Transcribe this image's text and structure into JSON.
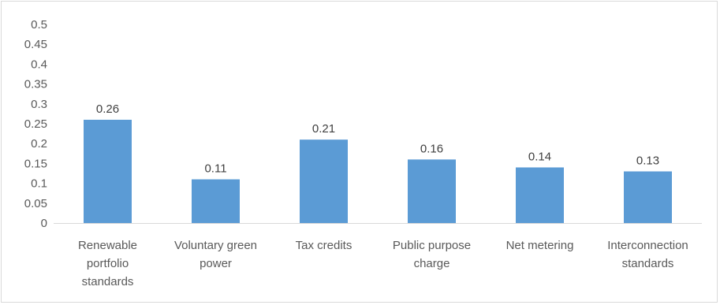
{
  "chart_data": {
    "type": "bar",
    "title": "",
    "xlabel": "",
    "ylabel": "",
    "categories": [
      "Renewable portfolio standards",
      "Voluntary green power",
      "Tax credits",
      "Public purpose charge",
      "Net metering",
      "Interconnection standards"
    ],
    "category_lines": [
      [
        "Renewable",
        "portfolio",
        "standards"
      ],
      [
        "Voluntary green",
        "power"
      ],
      [
        "Tax credits"
      ],
      [
        "Public purpose",
        "charge"
      ],
      [
        "Net metering"
      ],
      [
        "Interconnection",
        "standards"
      ]
    ],
    "values": [
      0.26,
      0.11,
      0.21,
      0.16,
      0.14,
      0.13
    ],
    "data_labels": [
      "0.26",
      "0.11",
      "0.21",
      "0.16",
      "0.14",
      "0.13"
    ],
    "ylim": [
      0,
      0.5
    ],
    "yticks": [
      0,
      0.05,
      0.1,
      0.15,
      0.2,
      0.25,
      0.3,
      0.35,
      0.4,
      0.45,
      0.5
    ],
    "ytick_labels": [
      "0",
      "0.05",
      "0.1",
      "0.15",
      "0.2",
      "0.25",
      "0.3",
      "0.35",
      "0.4",
      "0.45",
      "0.5"
    ],
    "bar_color": "#5b9bd5",
    "axis_color": "#d9d9d9",
    "grid": false,
    "legend": "none"
  }
}
